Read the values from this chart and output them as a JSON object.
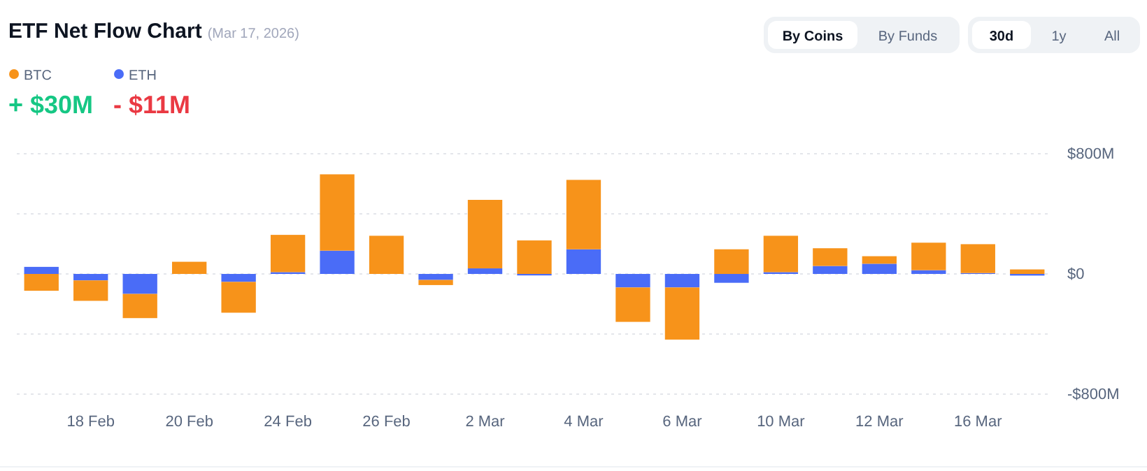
{
  "chart_data": {
    "type": "bar",
    "title": "ETF Net Flow Chart",
    "subtitle": "(Mar 17, 2026)",
    "categories": [
      null,
      "18 Feb",
      null,
      "20 Feb",
      null,
      "24 Feb",
      null,
      "26 Feb",
      null,
      "2 Mar",
      null,
      "4 Mar",
      null,
      "6 Mar",
      null,
      "10 Mar",
      null,
      "12 Mar",
      null,
      "16 Mar",
      null
    ],
    "stacked": true,
    "series": [
      {
        "name": "ETH",
        "color": "#4a6cf7",
        "values": [
          47,
          -43,
          -133,
          0,
          -53,
          12,
          155,
          0,
          -40,
          37,
          -10,
          164,
          -90,
          -90,
          -59,
          12,
          53,
          68,
          25,
          6,
          -11
        ]
      },
      {
        "name": "BTC",
        "color": "#f7931a",
        "values": [
          -112,
          -136,
          -161,
          81,
          -205,
          248,
          508,
          254,
          -34,
          456,
          223,
          462,
          -229,
          -347,
          164,
          242,
          118,
          50,
          183,
          192,
          30
        ]
      }
    ],
    "ylim": [
      -800,
      800
    ],
    "yticks": [
      {
        "value": -800,
        "label": "-$800M"
      },
      {
        "value": -400,
        "label": null
      },
      {
        "value": 0,
        "label": "$0"
      },
      {
        "value": 400,
        "label": null
      },
      {
        "value": 800,
        "label": "$800M"
      }
    ],
    "grid": "y",
    "legend": "top left",
    "annotations": [
      "+ $30M",
      "- $11M",
      "By Coins",
      "By Funds",
      "30d",
      "1y",
      "All"
    ]
  }
}
